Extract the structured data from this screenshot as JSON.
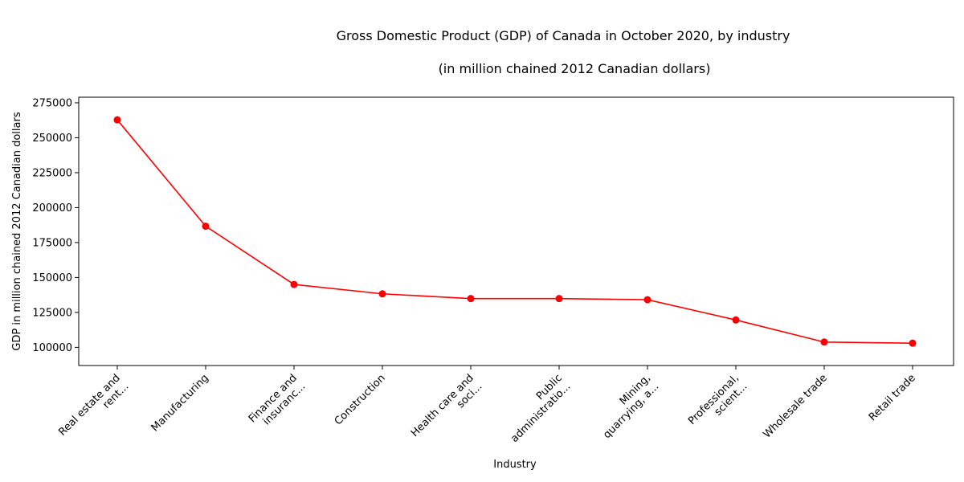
{
  "chart_data": {
    "type": "line",
    "title": "Gross Domestic Product (GDP) of Canada in October 2020, by industry",
    "subtitle": "(in million chained 2012 Canadian dollars)",
    "xlabel": "Industry",
    "ylabel": "GDP in million chained 2012 Canadian dollars",
    "categories": [
      "Real estate and\nrent...",
      "Manufacturing",
      "Finance and\ninsuranc...",
      "Construction",
      "Health care and\nsoci...",
      "Public\nadministratio...",
      "Mining,\nquarrying, a...",
      "Professional,\nscient...",
      "Wholesale trade",
      "Retail trade"
    ],
    "values": [
      262800,
      186700,
      145000,
      138300,
      134900,
      134900,
      134100,
      119600,
      103800,
      103000
    ],
    "ylim": [
      87000,
      279000
    ],
    "yticks": [
      100000,
      125000,
      150000,
      175000,
      200000,
      225000,
      250000,
      275000
    ],
    "ytick_labels": [
      "100000",
      "125000",
      "150000",
      "175000",
      "200000",
      "225000",
      "250000",
      "275000"
    ],
    "grid": false,
    "color": "#ff0000"
  }
}
